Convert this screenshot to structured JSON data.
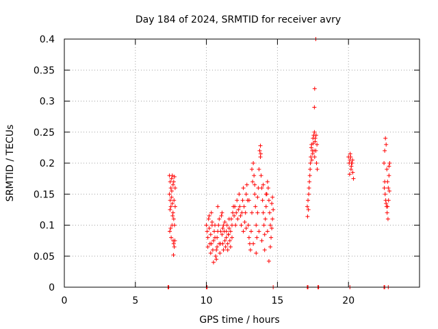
{
  "chart_data": {
    "type": "scatter",
    "title": "Day 184 of 2024, SRMTID for receiver avry",
    "xlabel": "GPS time / hours",
    "ylabel": "SRMTID / TECUs",
    "xlim": [
      0,
      25
    ],
    "ylim": [
      0,
      0.4
    ],
    "xticks": [
      0,
      5,
      10,
      15,
      20
    ],
    "xtick_labels": [
      "0",
      "5",
      "10",
      "15",
      "20"
    ],
    "yticks": [
      0,
      0.05,
      0.1,
      0.15,
      0.2,
      0.25,
      0.3,
      0.35,
      0.4
    ],
    "ytick_labels": [
      "0",
      "0.05",
      "0.1",
      "0.15",
      "0.2",
      "0.25",
      "0.3",
      "0.35",
      "0.4"
    ],
    "grid": true,
    "marker": "plus",
    "color": "#ff0000",
    "series": [
      {
        "name": "SRMTID",
        "points": [
          [
            7.3,
            0.0
          ],
          [
            7.35,
            0.0
          ],
          [
            10.0,
            0.0
          ],
          [
            10.05,
            0.0
          ],
          [
            14.7,
            0.0
          ],
          [
            17.1,
            0.0
          ],
          [
            17.15,
            0.0
          ],
          [
            17.85,
            0.0
          ],
          [
            17.9,
            0.0
          ],
          [
            20.1,
            0.0
          ],
          [
            22.5,
            0.0
          ],
          [
            22.55,
            0.0
          ],
          [
            22.8,
            0.0
          ],
          [
            7.4,
            0.18
          ],
          [
            7.45,
            0.17
          ],
          [
            7.5,
            0.16
          ],
          [
            7.55,
            0.175
          ],
          [
            7.6,
            0.18
          ],
          [
            7.65,
            0.165
          ],
          [
            7.7,
            0.17
          ],
          [
            7.75,
            0.178
          ],
          [
            7.4,
            0.15
          ],
          [
            7.45,
            0.14
          ],
          [
            7.5,
            0.13
          ],
          [
            7.55,
            0.145
          ],
          [
            7.6,
            0.135
          ],
          [
            7.65,
            0.12
          ],
          [
            7.7,
            0.11
          ],
          [
            7.75,
            0.1
          ],
          [
            7.8,
            0.13
          ],
          [
            7.42,
            0.09
          ],
          [
            7.48,
            0.095
          ],
          [
            7.52,
            0.08
          ],
          [
            7.58,
            0.1
          ],
          [
            7.62,
            0.115
          ],
          [
            7.66,
            0.075
          ],
          [
            7.7,
            0.07
          ],
          [
            7.74,
            0.065
          ],
          [
            7.78,
            0.075
          ],
          [
            7.68,
            0.052
          ],
          [
            7.8,
            0.16
          ],
          [
            7.44,
            0.125
          ],
          [
            7.56,
            0.155
          ],
          [
            7.72,
            0.14
          ],
          [
            10.0,
            0.1
          ],
          [
            10.05,
            0.09
          ],
          [
            10.1,
            0.08
          ],
          [
            10.15,
            0.11
          ],
          [
            10.2,
            0.095
          ],
          [
            10.25,
            0.07
          ],
          [
            10.3,
            0.085
          ],
          [
            10.35,
            0.12
          ],
          [
            10.4,
            0.1
          ],
          [
            10.45,
            0.06
          ],
          [
            10.5,
            0.075
          ],
          [
            10.55,
            0.09
          ],
          [
            10.6,
            0.1
          ],
          [
            10.65,
            0.05
          ],
          [
            10.7,
            0.06
          ],
          [
            10.75,
            0.08
          ],
          [
            10.8,
            0.13
          ],
          [
            10.85,
            0.1
          ],
          [
            10.9,
            0.07
          ],
          [
            10.95,
            0.055
          ],
          [
            11.0,
            0.09
          ],
          [
            11.05,
            0.115
          ],
          [
            11.1,
            0.085
          ],
          [
            11.15,
            0.07
          ],
          [
            11.2,
            0.06
          ],
          [
            11.25,
            0.09
          ],
          [
            11.3,
            0.075
          ],
          [
            11.35,
            0.065
          ],
          [
            11.4,
            0.08
          ],
          [
            11.45,
            0.1
          ],
          [
            11.5,
            0.07
          ],
          [
            11.55,
            0.085
          ],
          [
            11.6,
            0.095
          ],
          [
            11.65,
            0.075
          ],
          [
            11.7,
            0.09
          ],
          [
            11.75,
            0.11
          ],
          [
            11.8,
            0.1
          ],
          [
            11.85,
            0.12
          ],
          [
            11.9,
            0.13
          ],
          [
            11.95,
            0.115
          ],
          [
            10.1,
            0.065
          ],
          [
            10.3,
            0.055
          ],
          [
            10.5,
            0.04
          ],
          [
            10.7,
            0.045
          ],
          [
            10.9,
            0.11
          ],
          [
            11.1,
            0.12
          ],
          [
            11.3,
            0.105
          ],
          [
            11.5,
            0.06
          ],
          [
            11.7,
            0.065
          ],
          [
            10.2,
            0.115
          ],
          [
            10.4,
            0.105
          ],
          [
            10.6,
            0.08
          ],
          [
            10.8,
            0.09
          ],
          [
            11.0,
            0.07
          ],
          [
            11.2,
            0.1
          ],
          [
            11.4,
            0.09
          ],
          [
            11.6,
            0.11
          ],
          [
            11.8,
            0.08
          ],
          [
            10.35,
            0.07
          ],
          [
            10.75,
            0.065
          ],
          [
            11.15,
            0.095
          ],
          [
            11.55,
            0.085
          ],
          [
            12.0,
            0.13
          ],
          [
            12.05,
            0.1
          ],
          [
            12.1,
            0.12
          ],
          [
            12.15,
            0.14
          ],
          [
            12.2,
            0.11
          ],
          [
            12.25,
            0.125
          ],
          [
            12.3,
            0.15
          ],
          [
            12.35,
            0.13
          ],
          [
            12.4,
            0.115
          ],
          [
            12.45,
            0.1
          ],
          [
            12.5,
            0.12
          ],
          [
            12.55,
            0.14
          ],
          [
            12.6,
            0.16
          ],
          [
            12.65,
            0.13
          ],
          [
            12.7,
            0.105
          ],
          [
            12.75,
            0.12
          ],
          [
            12.8,
            0.15
          ],
          [
            12.85,
            0.165
          ],
          [
            12.9,
            0.14
          ],
          [
            12.95,
            0.1
          ],
          [
            13.0,
            0.08
          ],
          [
            13.05,
            0.07
          ],
          [
            13.1,
            0.06
          ],
          [
            13.15,
            0.09
          ],
          [
            13.2,
            0.12
          ],
          [
            13.25,
            0.17
          ],
          [
            13.3,
            0.2
          ],
          [
            13.35,
            0.18
          ],
          [
            13.4,
            0.15
          ],
          [
            13.45,
            0.13
          ],
          [
            13.5,
            0.1
          ],
          [
            13.55,
            0.08
          ],
          [
            13.6,
            0.12
          ],
          [
            13.65,
            0.16
          ],
          [
            13.7,
            0.19
          ],
          [
            13.75,
            0.22
          ],
          [
            13.8,
            0.21
          ],
          [
            13.85,
            0.18
          ],
          [
            13.9,
            0.16
          ],
          [
            13.95,
            0.14
          ],
          [
            14.0,
            0.12
          ],
          [
            14.05,
            0.1
          ],
          [
            14.1,
            0.085
          ],
          [
            14.15,
            0.11
          ],
          [
            14.2,
            0.13
          ],
          [
            14.25,
            0.15
          ],
          [
            14.3,
            0.17
          ],
          [
            14.35,
            0.16
          ],
          [
            14.4,
            0.14
          ],
          [
            14.45,
            0.12
          ],
          [
            14.5,
            0.1
          ],
          [
            14.55,
            0.08
          ],
          [
            14.6,
            0.095
          ],
          [
            14.65,
            0.11
          ],
          [
            14.7,
            0.125
          ],
          [
            14.4,
            0.042
          ],
          [
            13.3,
            0.07
          ],
          [
            13.5,
            0.055
          ],
          [
            13.7,
            0.09
          ],
          [
            13.9,
            0.075
          ],
          [
            14.1,
            0.06
          ],
          [
            14.3,
            0.09
          ],
          [
            14.5,
            0.065
          ],
          [
            13.8,
            0.228
          ],
          [
            13.82,
            0.215
          ],
          [
            13.2,
            0.19
          ],
          [
            13.4,
            0.165
          ],
          [
            12.6,
            0.09
          ],
          [
            12.8,
            0.095
          ],
          [
            14.6,
            0.135
          ],
          [
            14.65,
            0.145
          ],
          [
            13.0,
            0.14
          ],
          [
            13.6,
            0.145
          ],
          [
            14.0,
            0.165
          ],
          [
            14.2,
            0.15
          ],
          [
            17.1,
            0.13
          ],
          [
            17.15,
            0.14
          ],
          [
            17.2,
            0.15
          ],
          [
            17.25,
            0.17
          ],
          [
            17.3,
            0.19
          ],
          [
            17.35,
            0.21
          ],
          [
            17.4,
            0.23
          ],
          [
            17.45,
            0.22
          ],
          [
            17.5,
            0.24
          ],
          [
            17.55,
            0.245
          ],
          [
            17.6,
            0.25
          ],
          [
            17.65,
            0.235
          ],
          [
            17.7,
            0.22
          ],
          [
            17.75,
            0.2
          ],
          [
            17.8,
            0.19
          ],
          [
            17.12,
            0.114
          ],
          [
            17.18,
            0.125
          ],
          [
            17.22,
            0.16
          ],
          [
            17.28,
            0.18
          ],
          [
            17.32,
            0.2
          ],
          [
            17.38,
            0.225
          ],
          [
            17.42,
            0.205
          ],
          [
            17.48,
            0.215
          ],
          [
            17.52,
            0.232
          ],
          [
            17.58,
            0.22
          ],
          [
            17.62,
            0.21
          ],
          [
            17.66,
            0.24
          ],
          [
            17.72,
            0.245
          ],
          [
            17.78,
            0.23
          ],
          [
            17.6,
            0.29
          ],
          [
            17.62,
            0.32
          ],
          [
            17.7,
            0.4
          ],
          [
            20.0,
            0.21
          ],
          [
            20.05,
            0.2
          ],
          [
            20.1,
            0.205
          ],
          [
            20.15,
            0.21
          ],
          [
            20.2,
            0.195
          ],
          [
            20.25,
            0.2
          ],
          [
            20.3,
            0.185
          ],
          [
            20.35,
            0.175
          ],
          [
            20.08,
            0.182
          ],
          [
            20.18,
            0.19
          ],
          [
            20.28,
            0.205
          ],
          [
            20.12,
            0.215
          ],
          [
            20.22,
            0.2
          ],
          [
            22.5,
            0.2
          ],
          [
            22.55,
            0.22
          ],
          [
            22.6,
            0.24
          ],
          [
            22.65,
            0.23
          ],
          [
            22.7,
            0.19
          ],
          [
            22.75,
            0.17
          ],
          [
            22.8,
            0.16
          ],
          [
            22.85,
            0.18
          ],
          [
            22.9,
            0.2
          ],
          [
            22.52,
            0.16
          ],
          [
            22.58,
            0.15
          ],
          [
            22.62,
            0.14
          ],
          [
            22.68,
            0.13
          ],
          [
            22.72,
            0.12
          ],
          [
            22.78,
            0.11
          ],
          [
            22.82,
            0.14
          ],
          [
            22.88,
            0.155
          ],
          [
            22.55,
            0.17
          ],
          [
            22.65,
            0.135
          ],
          [
            22.75,
            0.13
          ],
          [
            22.85,
            0.195
          ]
        ]
      }
    ]
  }
}
